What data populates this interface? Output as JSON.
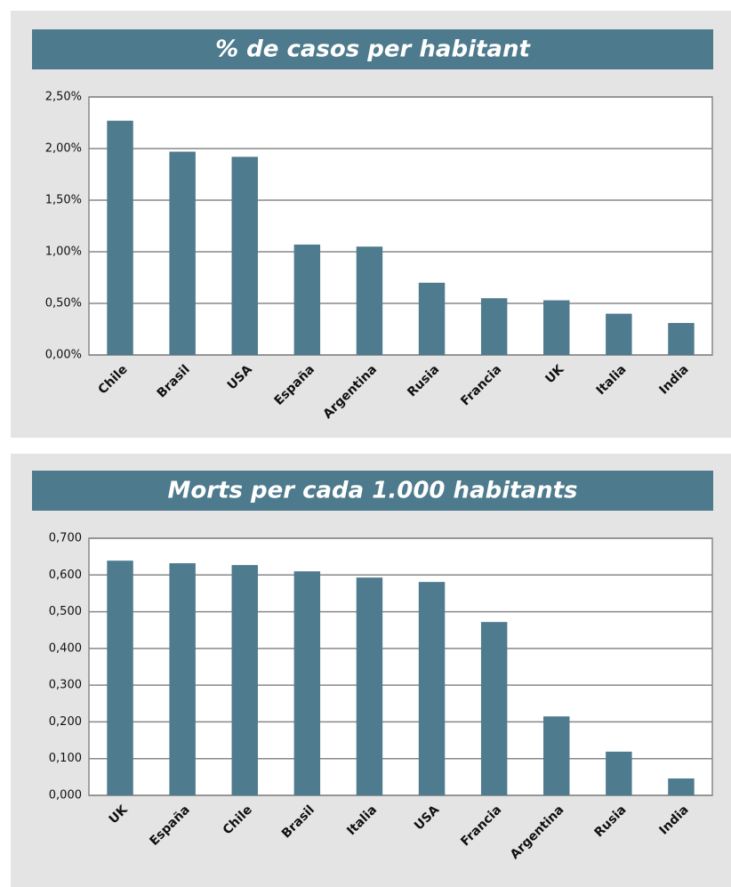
{
  "chart_data": [
    {
      "type": "bar",
      "title": "% de casos per habitant",
      "categories": [
        "Chile",
        "Brasil",
        "USA",
        "España",
        "Argentina",
        "Rusia",
        "Francia",
        "UK",
        "Italia",
        "India"
      ],
      "values": [
        2.27,
        1.97,
        1.92,
        1.07,
        1.05,
        0.7,
        0.55,
        0.53,
        0.4,
        0.31
      ],
      "color": "#4f7b8e",
      "ylim": [
        0,
        2.5
      ],
      "yticks": [
        {
          "value": 0,
          "label": "0,00%"
        },
        {
          "value": 0.5,
          "label": "0,50%"
        },
        {
          "value": 1,
          "label": "1,00%"
        },
        {
          "value": 1.5,
          "label": "1,50%"
        },
        {
          "value": 2,
          "label": "2,00%"
        },
        {
          "value": 2.5,
          "label": "2,50%"
        }
      ],
      "grid": true
    },
    {
      "type": "bar",
      "title": "Morts per cada 1.000 habitants",
      "categories": [
        "UK",
        "España",
        "Chile",
        "Brasil",
        "Italia",
        "USA",
        "Francia",
        "Argentina",
        "Rusia",
        "India"
      ],
      "values": [
        0.639,
        0.632,
        0.627,
        0.61,
        0.593,
        0.581,
        0.472,
        0.215,
        0.119,
        0.046
      ],
      "color": "#4f7b8e",
      "ylim": [
        0,
        0.7
      ],
      "yticks": [
        {
          "value": 0,
          "label": "0,000"
        },
        {
          "value": 0.1,
          "label": "0,100"
        },
        {
          "value": 0.2,
          "label": "0,200"
        },
        {
          "value": 0.3,
          "label": "0,300"
        },
        {
          "value": 0.4,
          "label": "0,400"
        },
        {
          "value": 0.5,
          "label": "0,500"
        },
        {
          "value": 0.6,
          "label": "0,600"
        },
        {
          "value": 0.7,
          "label": "0,700"
        }
      ],
      "grid": true
    }
  ]
}
